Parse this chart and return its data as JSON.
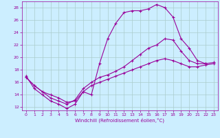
{
  "xlabel": "Windchill (Refroidissement éolien,°C)",
  "background_color": "#cceeff",
  "grid_color": "#aacccc",
  "line_color": "#990099",
  "xlim": [
    -0.5,
    23.5
  ],
  "ylim": [
    11.5,
    29.0
  ],
  "yticks": [
    12,
    14,
    16,
    18,
    20,
    22,
    24,
    26,
    28
  ],
  "xticks": [
    0,
    1,
    2,
    3,
    4,
    5,
    6,
    7,
    8,
    9,
    10,
    11,
    12,
    13,
    14,
    15,
    16,
    17,
    18,
    19,
    20,
    21,
    22,
    23
  ],
  "line1_x": [
    0,
    1,
    2,
    3,
    4,
    5,
    6,
    7,
    8,
    9,
    10,
    11,
    12,
    13,
    14,
    15,
    16,
    17,
    18,
    19,
    20,
    21,
    22
  ],
  "line1_y": [
    17.0,
    15.0,
    14.0,
    13.0,
    12.5,
    11.8,
    12.5,
    14.5,
    14.0,
    19.0,
    23.0,
    25.5,
    27.2,
    27.5,
    27.5,
    27.8,
    28.5,
    28.0,
    26.5,
    23.0,
    21.5,
    19.5,
    19.0
  ],
  "line2_x": [
    0,
    1,
    2,
    3,
    4,
    5,
    6,
    7,
    8,
    9,
    10,
    11,
    12,
    13,
    14,
    15,
    16,
    17,
    18,
    19,
    20,
    21,
    22,
    23
  ],
  "line2_y": [
    16.8,
    15.5,
    14.5,
    13.5,
    13.0,
    12.5,
    13.2,
    15.0,
    16.0,
    16.8,
    17.2,
    17.8,
    18.5,
    19.5,
    20.5,
    21.5,
    22.0,
    23.0,
    22.8,
    21.0,
    19.5,
    19.0,
    19.0,
    19.2
  ],
  "line3_x": [
    0,
    1,
    2,
    3,
    4,
    5,
    6,
    7,
    8,
    9,
    10,
    11,
    12,
    13,
    14,
    15,
    16,
    17,
    18,
    19,
    20,
    21,
    22,
    23
  ],
  "line3_y": [
    16.8,
    15.5,
    14.5,
    14.0,
    13.5,
    12.8,
    13.0,
    14.5,
    15.5,
    16.0,
    16.5,
    17.0,
    17.5,
    18.0,
    18.5,
    19.0,
    19.5,
    19.8,
    19.5,
    19.0,
    18.5,
    18.5,
    18.8,
    19.0
  ]
}
